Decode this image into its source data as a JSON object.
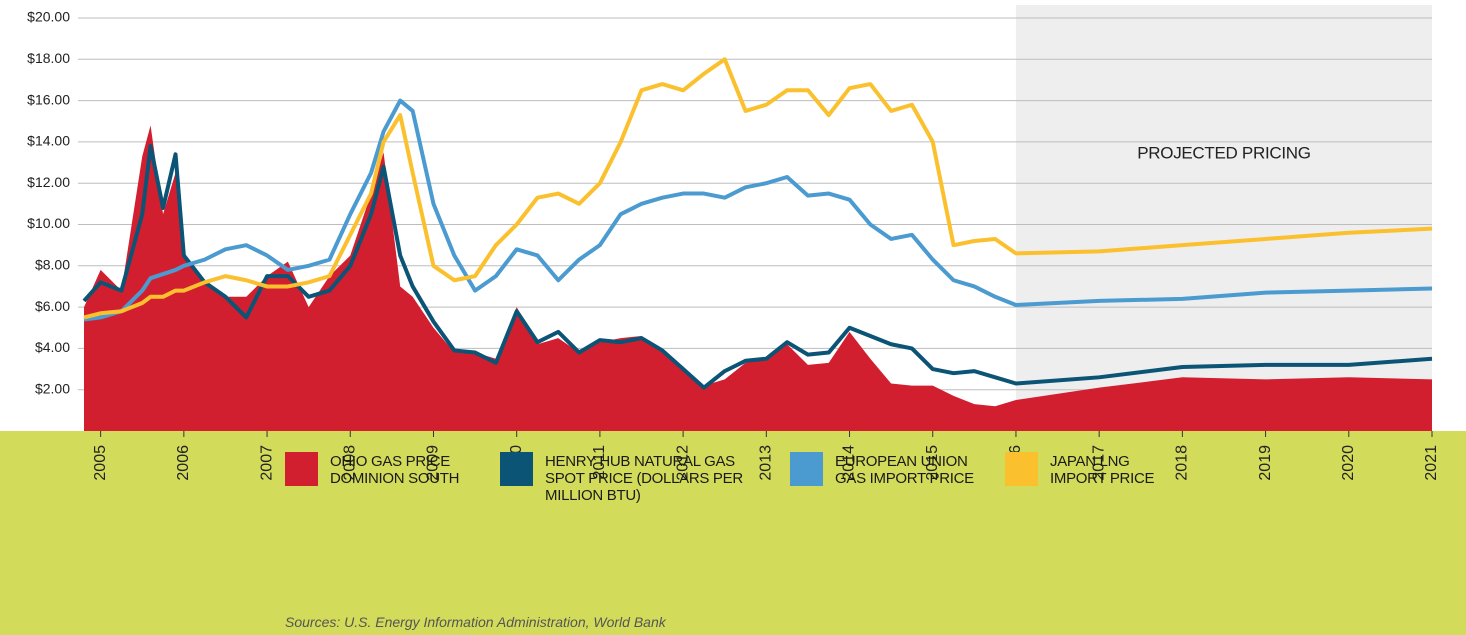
{
  "chart_data": {
    "type": "line",
    "annotation": "PROJECTED PRICING",
    "shaded_region": [
      2016,
      2021
    ],
    "source": "Sources: U.S. Energy Information Administration, World Bank",
    "x": [
      2004.8,
      2005.0,
      2005.25,
      2005.5,
      2005.6,
      2005.75,
      2005.9,
      2006.0,
      2006.25,
      2006.5,
      2006.75,
      2007.0,
      2007.25,
      2007.5,
      2007.75,
      2008.0,
      2008.25,
      2008.4,
      2008.6,
      2008.75,
      2009.0,
      2009.25,
      2009.5,
      2009.75,
      2010.0,
      2010.25,
      2010.5,
      2010.75,
      2011.0,
      2011.25,
      2011.5,
      2011.75,
      2012.0,
      2012.25,
      2012.5,
      2012.75,
      2013.0,
      2013.25,
      2013.5,
      2013.75,
      2014.0,
      2014.25,
      2014.5,
      2014.75,
      2015.0,
      2015.25,
      2015.5,
      2015.75,
      2016.0,
      2017.0,
      2018.0,
      2019.0,
      2020.0,
      2021.0
    ],
    "series": [
      {
        "name": "OHIO GAS PRICE DOMINION SOUTH",
        "color": "#d21f2f",
        "area": true,
        "values": [
          6.0,
          7.8,
          6.8,
          13.3,
          14.8,
          10.5,
          12.5,
          8.5,
          7.2,
          6.5,
          6.5,
          7.5,
          8.2,
          6.0,
          7.5,
          8.5,
          11.5,
          13.5,
          7.0,
          6.5,
          5.0,
          3.8,
          3.8,
          3.5,
          6.0,
          4.2,
          4.5,
          3.8,
          4.3,
          4.5,
          4.6,
          3.8,
          3.0,
          2.2,
          2.5,
          3.3,
          3.5,
          4.2,
          3.2,
          3.3,
          4.8,
          3.5,
          2.3,
          2.2,
          2.2,
          1.7,
          1.3,
          1.2,
          1.5,
          2.1,
          2.6,
          2.5,
          2.6,
          2.5
        ]
      },
      {
        "name": "HENRY HUB NATURAL GAS SPOT PRICE (DOLLARS PER MILLION BTU)",
        "color": "#0b5475",
        "values": [
          6.3,
          7.2,
          6.8,
          10.5,
          13.8,
          10.8,
          13.4,
          8.5,
          7.2,
          6.5,
          5.5,
          7.5,
          7.5,
          6.5,
          6.8,
          8.0,
          10.5,
          12.8,
          8.5,
          7.0,
          5.3,
          3.9,
          3.8,
          3.3,
          5.8,
          4.3,
          4.8,
          3.8,
          4.4,
          4.3,
          4.5,
          3.9,
          3.0,
          2.1,
          2.9,
          3.4,
          3.5,
          4.3,
          3.7,
          3.8,
          5.0,
          4.6,
          4.2,
          4.0,
          3.0,
          2.8,
          2.9,
          2.6,
          2.3,
          2.6,
          3.1,
          3.2,
          3.2,
          3.5
        ]
      },
      {
        "name": "EUROPEAN UNION GAS IMPORT PRICE",
        "color": "#4b9bd1",
        "values": [
          5.4,
          5.5,
          5.8,
          6.8,
          7.4,
          7.6,
          7.8,
          8.0,
          8.3,
          8.8,
          9.0,
          8.5,
          7.8,
          8.0,
          8.3,
          10.5,
          12.5,
          14.5,
          16.0,
          15.5,
          11.0,
          8.5,
          6.8,
          7.5,
          8.8,
          8.5,
          7.3,
          8.3,
          9.0,
          10.5,
          11.0,
          11.3,
          11.5,
          11.5,
          11.3,
          11.8,
          12.0,
          12.3,
          11.4,
          11.5,
          11.2,
          10.0,
          9.3,
          9.5,
          8.3,
          7.3,
          7.0,
          6.5,
          6.1,
          6.3,
          6.4,
          6.7,
          6.8,
          6.9
        ]
      },
      {
        "name": "JAPAN LNG IMPORT PRICE",
        "color": "#fbc02d",
        "values": [
          5.5,
          5.7,
          5.8,
          6.2,
          6.5,
          6.5,
          6.8,
          6.8,
          7.2,
          7.5,
          7.3,
          7.0,
          7.0,
          7.2,
          7.5,
          9.5,
          11.5,
          14.0,
          15.3,
          12.5,
          8.0,
          7.3,
          7.5,
          9.0,
          10.0,
          11.3,
          11.5,
          11.0,
          12.0,
          14.0,
          16.5,
          16.8,
          16.5,
          17.3,
          18.0,
          15.5,
          15.8,
          16.5,
          16.5,
          15.3,
          16.6,
          16.8,
          15.5,
          15.8,
          14.0,
          9.0,
          9.2,
          9.3,
          8.6,
          8.7,
          9.0,
          9.3,
          9.6,
          9.8
        ]
      }
    ],
    "xlim": [
      2004.8,
      2021
    ],
    "xticks": [
      2005,
      2006,
      2007,
      2008,
      2009,
      2010,
      2011,
      2012,
      2013,
      2014,
      2015,
      2016,
      2017,
      2018,
      2019,
      2020,
      2021
    ],
    "ylim": [
      0,
      20
    ],
    "yticks": [
      {
        "value": 2,
        "label": "$2.00"
      },
      {
        "value": 4,
        "label": "$4.00"
      },
      {
        "value": 6,
        "label": "$6.00"
      },
      {
        "value": 8,
        "label": "$8.00"
      },
      {
        "value": 10,
        "label": "$10.00"
      },
      {
        "value": 12,
        "label": "$12.00"
      },
      {
        "value": 14,
        "label": "$14.00"
      },
      {
        "value": 16,
        "label": "$16.00"
      },
      {
        "value": 18,
        "label": "$18.00"
      },
      {
        "value": 20,
        "label": "$20.00"
      }
    ],
    "grid": true
  }
}
